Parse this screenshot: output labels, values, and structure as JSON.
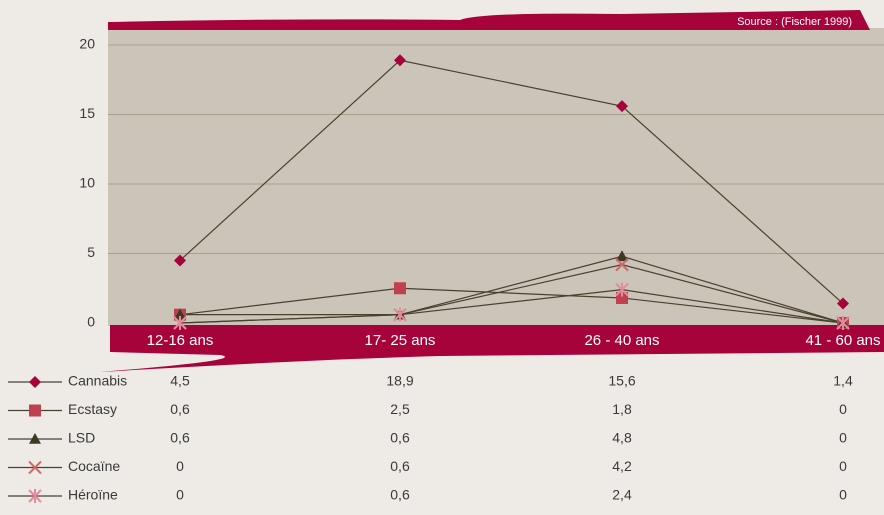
{
  "chart_data": {
    "type": "line",
    "source": "Source : (Fischer 1999)",
    "categories": [
      "12-16 ans",
      "17- 25 ans",
      "26 - 40 ans",
      "41 - 60 ans"
    ],
    "ylim": [
      0,
      21
    ],
    "yticks": [
      0,
      5,
      10,
      15,
      20
    ],
    "grid": true,
    "series": [
      {
        "name": "Cannabis",
        "color": "#a6033a",
        "marker": "diamond",
        "values": [
          4.5,
          18.9,
          15.6,
          1.4
        ],
        "value_labels": [
          "4,5",
          "18,9",
          "15,6",
          "1,4"
        ]
      },
      {
        "name": "Ecstasy",
        "color": "#c0404f",
        "marker": "square",
        "values": [
          0.6,
          2.5,
          1.8,
          0
        ],
        "value_labels": [
          "0,6",
          "2,5",
          "1,8",
          "0"
        ]
      },
      {
        "name": "LSD",
        "color": "#3d3a22",
        "marker": "triangle",
        "values": [
          0.6,
          0.6,
          4.8,
          0
        ],
        "value_labels": [
          "0,6",
          "0,6",
          "4,8",
          "0"
        ]
      },
      {
        "name": "Cocaïne",
        "color": "#d06a6a",
        "marker": "x",
        "values": [
          0,
          0.6,
          4.2,
          0
        ],
        "value_labels": [
          "0",
          "0,6",
          "4,2",
          "0"
        ]
      },
      {
        "name": "Héroïne",
        "color": "#e38a9c",
        "marker": "asterisk",
        "values": [
          0,
          0.6,
          2.4,
          0
        ],
        "value_labels": [
          "0",
          "0,6",
          "2,4",
          "0"
        ]
      }
    ]
  }
}
